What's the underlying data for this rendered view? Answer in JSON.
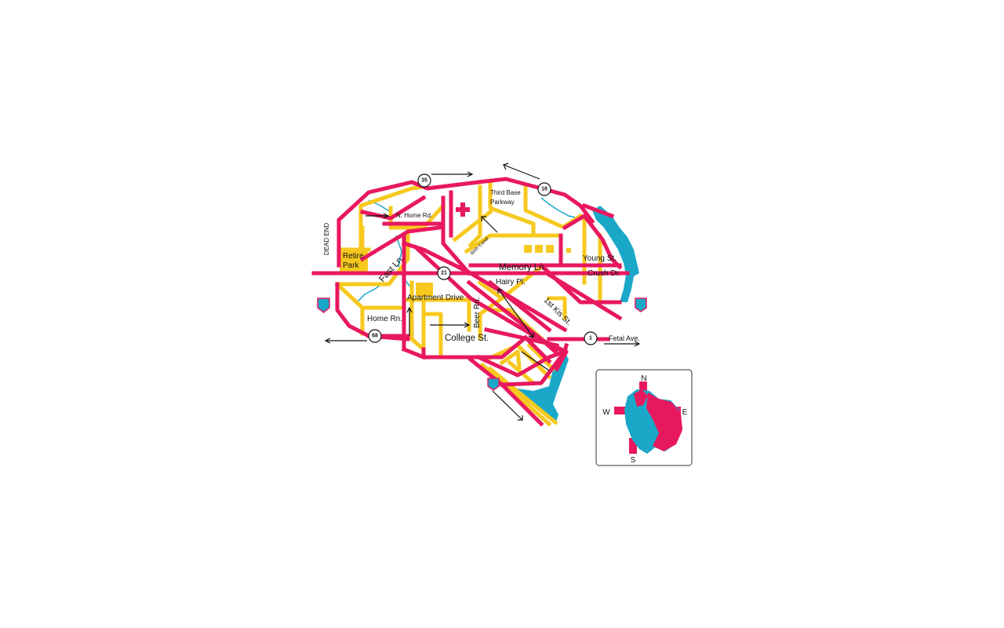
{
  "map": {
    "streets": {
      "third_base_line1": "Third Base",
      "third_base_line2": "Parkway",
      "n_home": "N. Home Rd.",
      "dead_end": "DEAD END",
      "retire_line1": "Retire",
      "retire_line2": "Park",
      "fast_ln": "Fast Ln.",
      "birth_canal": "Birth Canal",
      "memory_ln": "Memory Ln.",
      "young_st": "Young St.",
      "crush_dr": "Crush Dr.",
      "hairy_pl": "Hairy Pl.",
      "apartment_drive": "Apartment Drive",
      "beer_rn": "Beer Rn.",
      "home_rn": "Home Rn.",
      "first_kis": "1st Kis St.",
      "college_st": "College St.",
      "fetal_ave": "Fetal Ave."
    },
    "route_markers": [
      "35",
      "16",
      "21",
      "68",
      "1"
    ],
    "compass": {
      "n": "N",
      "e": "E",
      "s": "S",
      "w": "W"
    },
    "colors": {
      "major_road": "#e8185f",
      "minor_road": "#f7c81e",
      "water": "#1aa8c9"
    },
    "icons": [
      "hospital-cross-icon",
      "interstate-shield-icon",
      "heart-compass-icon"
    ]
  }
}
